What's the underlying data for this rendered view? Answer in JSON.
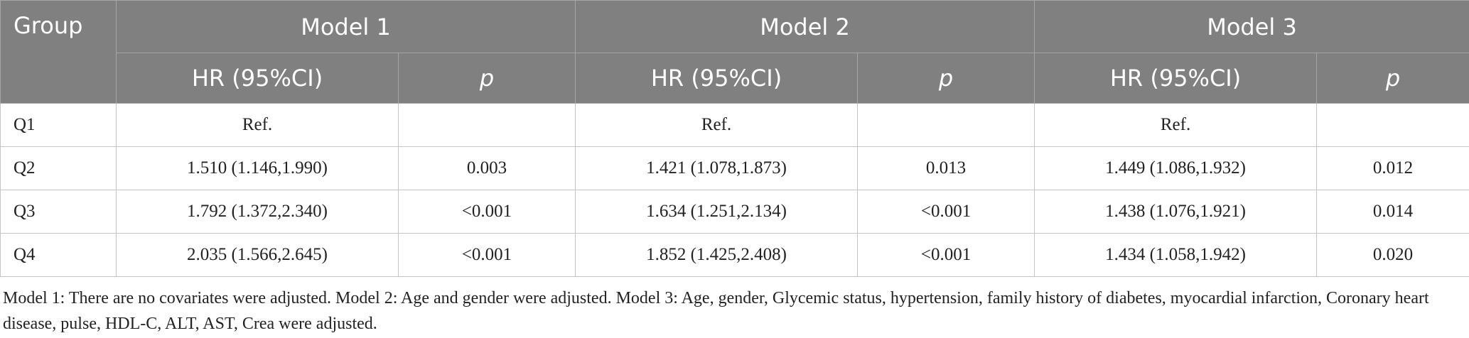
{
  "table": {
    "group_header": "Group",
    "models": [
      "Model 1",
      "Model 2",
      "Model 3"
    ],
    "subheaders": [
      "HR (95%CI)",
      "p"
    ],
    "rows": [
      {
        "group": "Q1",
        "hr": [
          "Ref.",
          "Ref.",
          "Ref."
        ]
      },
      {
        "group": "Q2",
        "hr": [
          "1.510 (1.146,1.990)",
          "1.421 (1.078,1.873)",
          "1.449 (1.086,1.932)"
        ],
        "p": [
          "0.003",
          "0.013",
          "0.012"
        ]
      },
      {
        "group": "Q3",
        "hr": [
          "1.792 (1.372,2.340)",
          "1.634 (1.251,2.134)",
          "1.438 (1.076,1.921)"
        ],
        "p": [
          "<0.001",
          "<0.001",
          "0.014"
        ]
      },
      {
        "group": "Q4",
        "hr": [
          "2.035 (1.566,2.645)",
          "1.852 (1.425,2.408)",
          "1.434 (1.058,1.942)"
        ],
        "p": [
          "<0.001",
          "<0.001",
          "0.020"
        ]
      }
    ]
  },
  "footnote": "Model 1: There are no covariates were adjusted. Model 2: Age and gender were adjusted. Model 3: Age, gender, Glycemic status, hypertension, family history of diabetes, myocardial infarction, Coronary heart disease, pulse, HDL-C, ALT, AST, Crea were adjusted."
}
